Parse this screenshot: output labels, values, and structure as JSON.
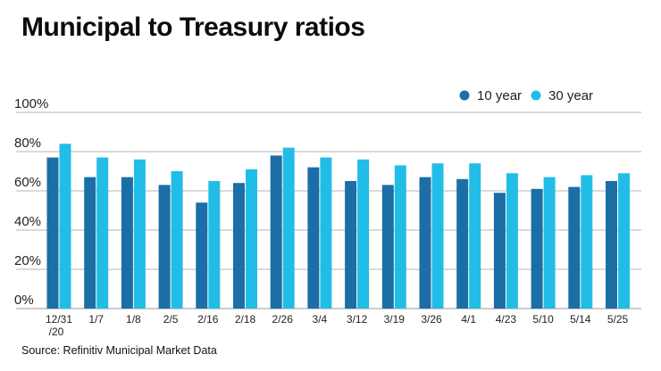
{
  "chart_data": {
    "type": "bar",
    "title": "Municipal to Treasury ratios",
    "source": "Source: Refinitiv Municipal Market Data",
    "categories": [
      "12/31\n/20",
      "1/7",
      "1/8",
      "2/5",
      "2/16",
      "2/18",
      "2/26",
      "3/4",
      "3/12",
      "3/19",
      "3/26",
      "4/1",
      "4/23",
      "5/10",
      "5/14",
      "5/25"
    ],
    "series": [
      {
        "name": "10 year",
        "color": "#1b6ea6",
        "values": [
          77,
          67,
          67,
          63,
          54,
          64,
          78,
          72,
          65,
          63,
          67,
          66,
          59,
          61,
          62,
          65
        ]
      },
      {
        "name": "30 year",
        "color": "#22bde6",
        "values": [
          84,
          77,
          76,
          70,
          65,
          71,
          82,
          77,
          76,
          73,
          74,
          74,
          69,
          67,
          68,
          69
        ]
      }
    ],
    "ylim": [
      0,
      100
    ],
    "yticks": [
      0,
      20,
      40,
      60,
      80,
      100
    ],
    "ytick_labels": [
      "0%",
      "20%",
      "40%",
      "60%",
      "80%",
      "100%"
    ],
    "xlabel": "",
    "ylabel": "",
    "grid": true,
    "legend_position": "top-right"
  }
}
